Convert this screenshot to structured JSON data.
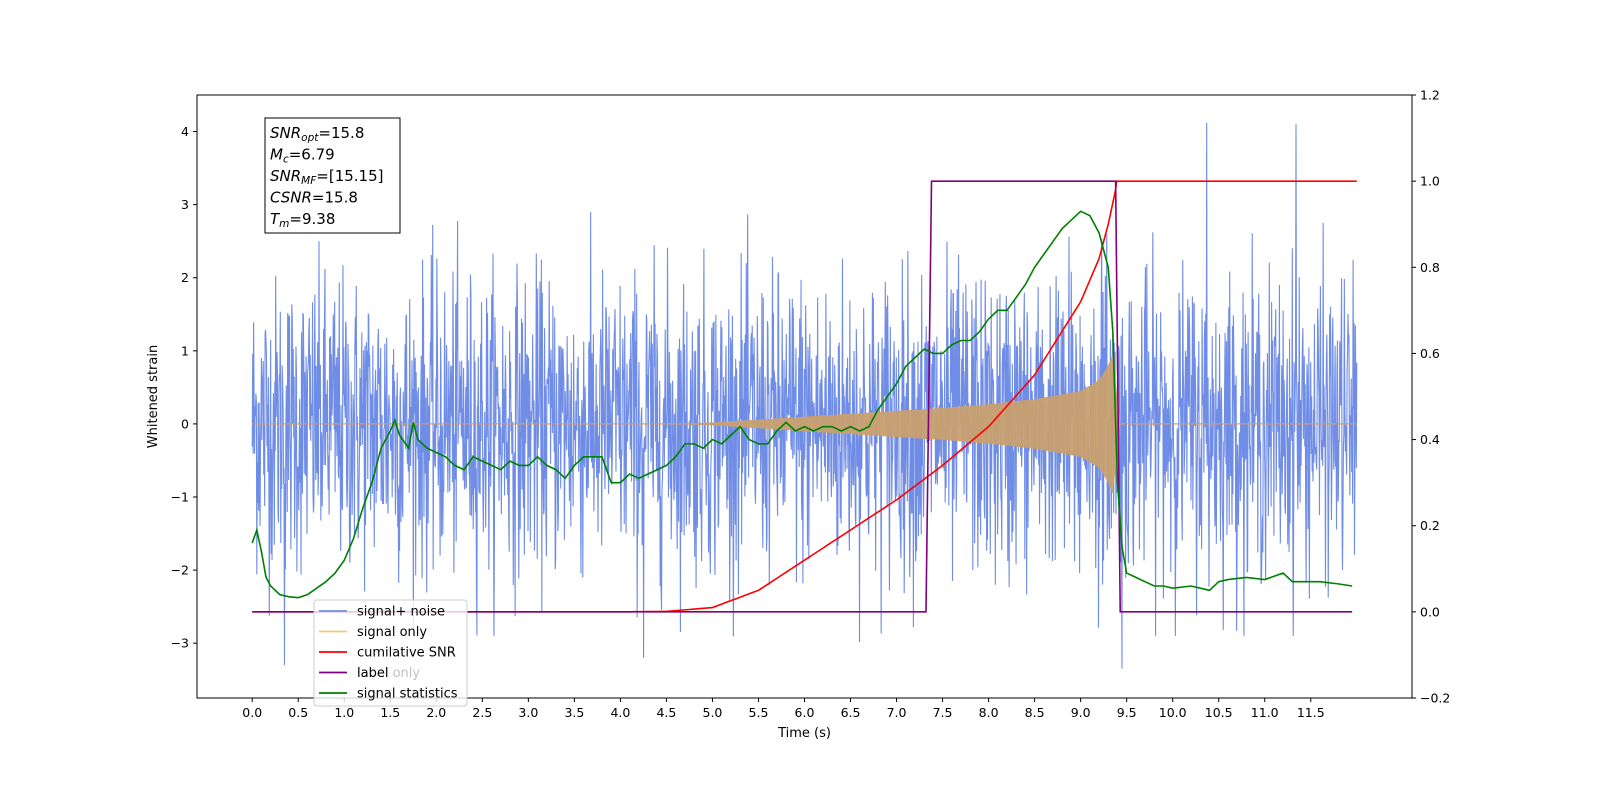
{
  "chart_data": {
    "type": "line",
    "xlabel": "Time (s)",
    "ylabel": "Whitened strain",
    "xlim": [
      -0.6,
      12.6
    ],
    "ylim": [
      -3.75,
      4.5
    ],
    "y2lim": [
      -0.2,
      1.2
    ],
    "x_ticks": [
      "0.0",
      "0.5",
      "1.0",
      "1.5",
      "2.0",
      "2.5",
      "3.0",
      "3.5",
      "4.0",
      "4.5",
      "5.0",
      "5.5",
      "6.0",
      "6.5",
      "7.0",
      "7.5",
      "8.0",
      "8.5",
      "9.0",
      "9.5",
      "10.0",
      "10.5",
      "11.0",
      "11.5"
    ],
    "y_ticks": [
      "−3",
      "−2",
      "−1",
      "0",
      "1",
      "2",
      "3",
      "4"
    ],
    "y2_ticks": [
      "−0.2",
      "0.0",
      "0.2",
      "0.4",
      "0.6",
      "0.8",
      "1.0",
      "1.2"
    ],
    "info_box": [
      {
        "main": "SNR",
        "sub": "opt",
        "value": "=15.8"
      },
      {
        "main": "M",
        "sub": "c",
        "value": "=6.79"
      },
      {
        "main": "SNR",
        "sub": "MF",
        "value": "=[15.15]"
      },
      {
        "main": "CSNR",
        "sub": "",
        "value": "=15.8"
      },
      {
        "main": "T",
        "sub": "m",
        "value": "=9.38"
      }
    ],
    "legend": {
      "position": "lower-left",
      "entries": [
        {
          "label": "signal+ noise",
          "color": "#6f8ce6"
        },
        {
          "label": "signal only",
          "color": "#f5c875"
        },
        {
          "label": "cumilative SNR",
          "color": "#ff0000"
        },
        {
          "label": "label",
          "color": "#800080"
        },
        {
          "label": "signal statistics",
          "color": "#008000"
        }
      ],
      "ghost_text": [
        "label only"
      ]
    },
    "series": [
      {
        "name": "signal+ noise",
        "axis": "left",
        "color": "#6f8ce6",
        "x_range": [
          0.0,
          12.0
        ],
        "noise_envelope": [
          -2.6,
          2.6
        ],
        "notable_peaks": [
          {
            "x": 10.37,
            "y": 4.12
          },
          {
            "x": 11.34,
            "y": 4.1
          },
          {
            "x": 9.45,
            "y": -3.35
          },
          {
            "x": 4.25,
            "y": -3.2
          },
          {
            "x": 0.35,
            "y": -3.3
          }
        ]
      },
      {
        "name": "signal only",
        "axis": "left",
        "color": "#c8a070",
        "x": [
          0.0,
          4.5,
          5.0,
          5.5,
          6.0,
          6.5,
          7.0,
          7.5,
          8.0,
          8.5,
          9.0,
          9.2,
          9.3,
          9.38,
          9.4,
          12.0
        ],
        "amplitude": [
          0.0,
          0.0,
          0.02,
          0.06,
          0.1,
          0.14,
          0.18,
          0.22,
          0.27,
          0.34,
          0.45,
          0.6,
          0.8,
          1.05,
          0.0,
          0.0
        ]
      },
      {
        "name": "cumilative SNR",
        "axis": "right",
        "color": "#ff0000",
        "x": [
          0.0,
          4.0,
          4.5,
          5.0,
          5.5,
          6.0,
          6.5,
          7.0,
          7.5,
          8.0,
          8.5,
          9.0,
          9.2,
          9.3,
          9.38,
          9.39,
          12.0
        ],
        "values": [
          0.0,
          0.0,
          0.001,
          0.01,
          0.05,
          0.12,
          0.19,
          0.26,
          0.34,
          0.43,
          0.55,
          0.72,
          0.82,
          0.9,
          0.98,
          1.0,
          1.0
        ]
      },
      {
        "name": "label",
        "axis": "right",
        "color": "#800080",
        "x": [
          0.0,
          7.32,
          7.38,
          9.38,
          9.43,
          11.95
        ],
        "values": [
          0.0,
          0.0,
          1.0,
          1.0,
          0.0,
          0.0
        ]
      },
      {
        "name": "signal statistics",
        "axis": "right",
        "color": "#008000",
        "x": [
          0.0,
          0.05,
          0.1,
          0.15,
          0.2,
          0.3,
          0.4,
          0.5,
          0.6,
          0.7,
          0.8,
          0.9,
          1.0,
          1.1,
          1.2,
          1.3,
          1.4,
          1.5,
          1.55,
          1.6,
          1.7,
          1.75,
          1.8,
          1.9,
          2.0,
          2.1,
          2.2,
          2.3,
          2.4,
          2.5,
          2.6,
          2.7,
          2.8,
          2.9,
          3.0,
          3.1,
          3.2,
          3.3,
          3.4,
          3.5,
          3.6,
          3.7,
          3.8,
          3.9,
          4.0,
          4.1,
          4.2,
          4.3,
          4.4,
          4.5,
          4.6,
          4.7,
          4.8,
          4.9,
          5.0,
          5.1,
          5.2,
          5.3,
          5.4,
          5.5,
          5.6,
          5.7,
          5.8,
          5.9,
          6.0,
          6.1,
          6.2,
          6.3,
          6.4,
          6.5,
          6.6,
          6.7,
          6.8,
          6.9,
          7.0,
          7.1,
          7.2,
          7.3,
          7.4,
          7.5,
          7.6,
          7.7,
          7.8,
          7.9,
          8.0,
          8.1,
          8.2,
          8.3,
          8.4,
          8.5,
          8.6,
          8.7,
          8.8,
          8.9,
          9.0,
          9.1,
          9.2,
          9.3,
          9.35,
          9.4,
          9.45,
          9.5,
          9.6,
          9.7,
          9.8,
          9.9,
          10.0,
          10.2,
          10.4,
          10.5,
          10.6,
          10.8,
          11.0,
          11.2,
          11.3,
          11.4,
          11.6,
          11.8,
          11.95
        ],
        "values": [
          0.16,
          0.19,
          0.14,
          0.08,
          0.06,
          0.04,
          0.035,
          0.033,
          0.04,
          0.055,
          0.07,
          0.09,
          0.12,
          0.17,
          0.24,
          0.3,
          0.38,
          0.42,
          0.445,
          0.41,
          0.38,
          0.44,
          0.4,
          0.38,
          0.37,
          0.36,
          0.34,
          0.33,
          0.36,
          0.35,
          0.34,
          0.33,
          0.35,
          0.34,
          0.34,
          0.36,
          0.34,
          0.33,
          0.31,
          0.34,
          0.36,
          0.36,
          0.36,
          0.3,
          0.3,
          0.32,
          0.31,
          0.32,
          0.33,
          0.34,
          0.36,
          0.39,
          0.39,
          0.38,
          0.4,
          0.39,
          0.41,
          0.43,
          0.4,
          0.39,
          0.39,
          0.42,
          0.44,
          0.42,
          0.43,
          0.42,
          0.43,
          0.43,
          0.42,
          0.43,
          0.42,
          0.43,
          0.47,
          0.5,
          0.53,
          0.57,
          0.59,
          0.61,
          0.6,
          0.6,
          0.62,
          0.63,
          0.63,
          0.65,
          0.68,
          0.7,
          0.7,
          0.73,
          0.76,
          0.8,
          0.83,
          0.86,
          0.89,
          0.91,
          0.93,
          0.92,
          0.88,
          0.8,
          0.65,
          0.3,
          0.15,
          0.09,
          0.08,
          0.07,
          0.06,
          0.06,
          0.055,
          0.06,
          0.05,
          0.07,
          0.075,
          0.08,
          0.075,
          0.09,
          0.07,
          0.07,
          0.07,
          0.065,
          0.06
        ]
      }
    ]
  }
}
